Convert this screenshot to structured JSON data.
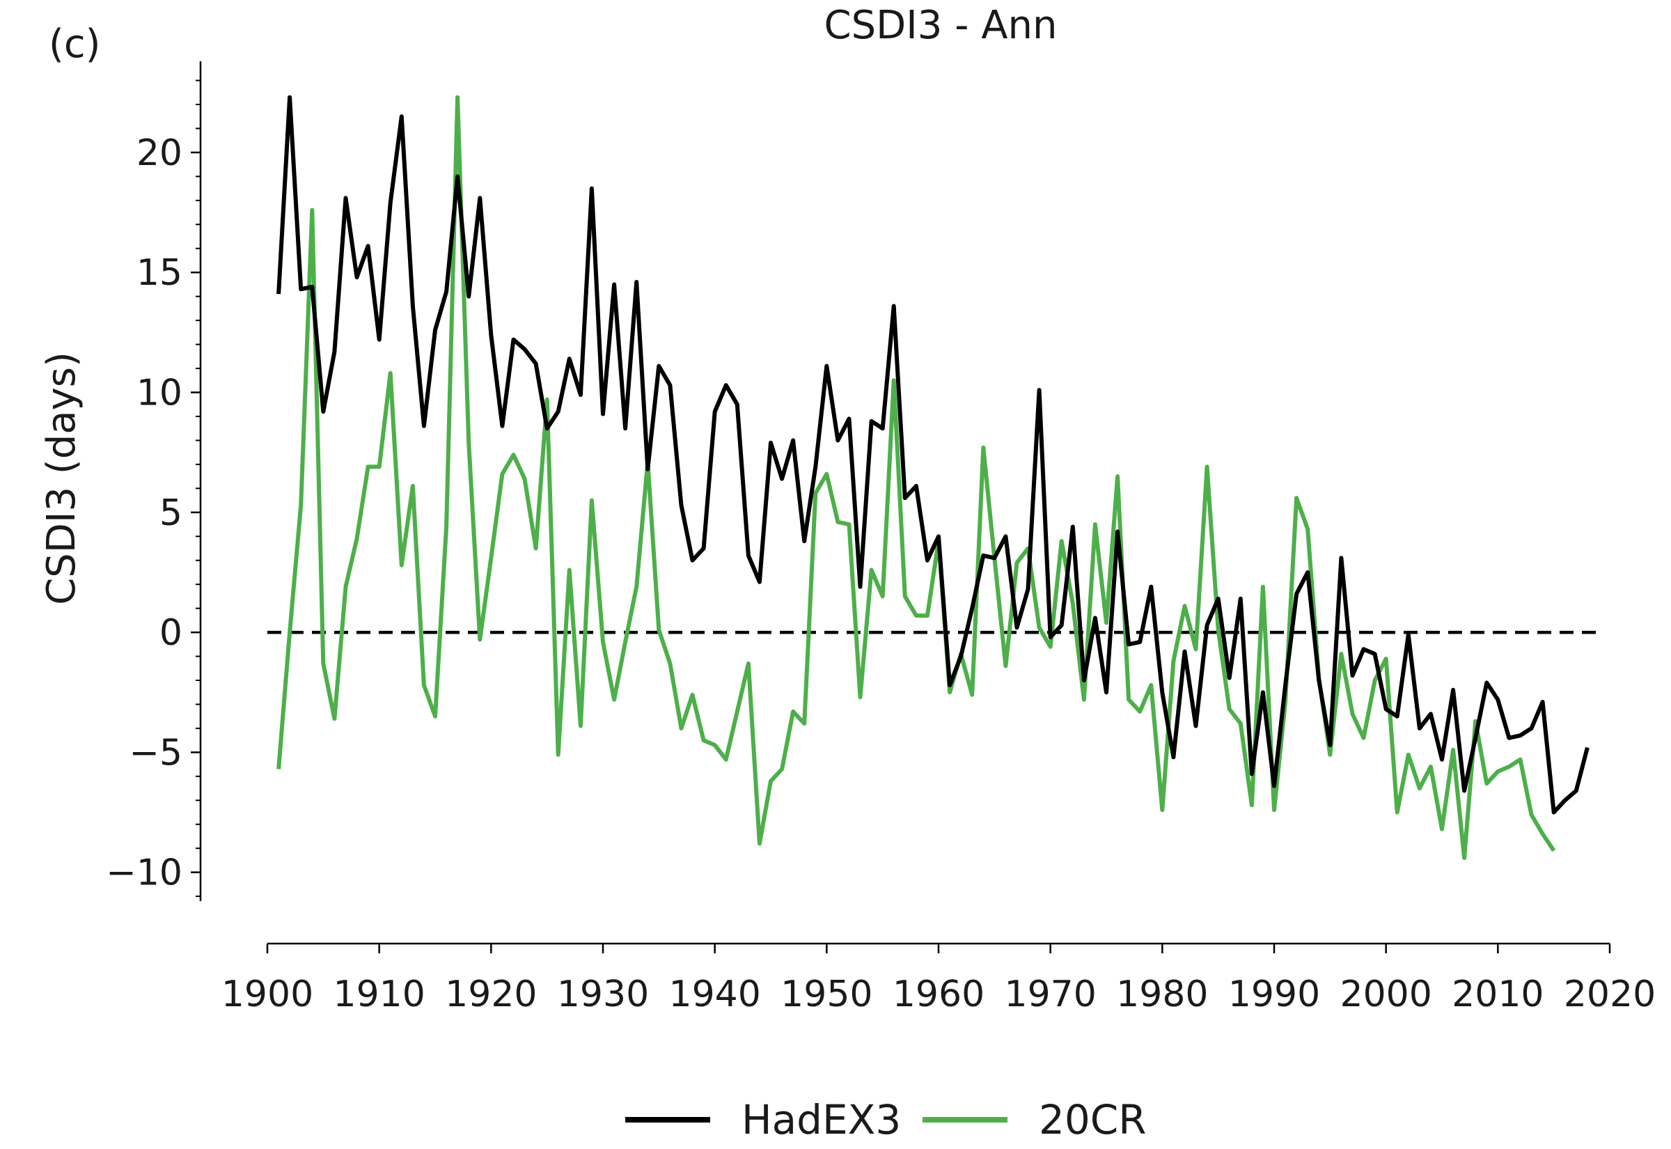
{
  "panel_label": "(c)",
  "colors": {
    "hadex3": "#000000",
    "cr20": "#4daf4a",
    "zero_line": "#000000",
    "axis": "#000000"
  },
  "chart_data": {
    "type": "line",
    "title": "CSDI3 - Ann",
    "xlabel": "",
    "ylabel": "CSDI3 (days)",
    "xlim": [
      1900,
      2020
    ],
    "ylim": [
      -11.2,
      23.8
    ],
    "xticks": [
      1900,
      1910,
      1920,
      1930,
      1940,
      1950,
      1960,
      1970,
      1980,
      1990,
      2000,
      2010,
      2020
    ],
    "yticks": [
      -10,
      -5,
      0,
      5,
      10,
      15,
      20
    ],
    "yminor_step": 1,
    "grid": false,
    "reference_line": {
      "y": 0,
      "style": "dashed"
    },
    "legend_position": "bottom-center",
    "series": [
      {
        "name": "HadEX3",
        "color": "#000000",
        "x": [
          1901,
          1902,
          1903,
          1904,
          1905,
          1906,
          1907,
          1908,
          1909,
          1910,
          1911,
          1912,
          1913,
          1914,
          1915,
          1916,
          1917,
          1918,
          1919,
          1920,
          1921,
          1922,
          1923,
          1924,
          1925,
          1926,
          1927,
          1928,
          1929,
          1930,
          1931,
          1932,
          1933,
          1934,
          1935,
          1936,
          1937,
          1938,
          1939,
          1940,
          1941,
          1942,
          1943,
          1944,
          1945,
          1946,
          1947,
          1948,
          1949,
          1950,
          1951,
          1952,
          1953,
          1954,
          1955,
          1956,
          1957,
          1958,
          1959,
          1960,
          1961,
          1962,
          1963,
          1964,
          1965,
          1966,
          1967,
          1968,
          1969,
          1970,
          1971,
          1972,
          1973,
          1974,
          1975,
          1976,
          1977,
          1978,
          1979,
          1980,
          1981,
          1982,
          1983,
          1984,
          1985,
          1986,
          1987,
          1988,
          1989,
          1990,
          1991,
          1992,
          1993,
          1994,
          1995,
          1996,
          1997,
          1998,
          1999,
          2000,
          2001,
          2002,
          2003,
          2004,
          2005,
          2006,
          2007,
          2008,
          2009,
          2010,
          2011,
          2012,
          2013,
          2014,
          2015,
          2016,
          2017,
          2018
        ],
        "y": [
          14.1,
          22.3,
          14.3,
          14.4,
          9.2,
          11.7,
          18.1,
          14.8,
          16.1,
          12.2,
          17.9,
          21.5,
          13.6,
          8.6,
          12.6,
          14.2,
          19.0,
          14.0,
          18.1,
          12.4,
          8.6,
          12.2,
          11.8,
          11.2,
          8.5,
          9.2,
          11.4,
          9.9,
          18.5,
          9.1,
          14.5,
          8.5,
          14.6,
          6.8,
          11.1,
          10.3,
          5.3,
          3.0,
          3.5,
          9.2,
          10.3,
          9.5,
          3.2,
          2.1,
          7.9,
          6.4,
          8.0,
          3.8,
          6.9,
          11.1,
          8.0,
          8.9,
          1.9,
          8.8,
          8.5,
          13.6,
          5.6,
          6.1,
          3.0,
          4.0,
          -2.2,
          -1.0,
          1.0,
          3.2,
          3.1,
          4.0,
          0.2,
          1.8,
          10.1,
          -0.2,
          0.3,
          4.4,
          -2.0,
          0.6,
          -2.5,
          4.2,
          -0.5,
          -0.4,
          1.9,
          -2.5,
          -5.2,
          -0.8,
          -3.9,
          0.3,
          1.4,
          -1.9,
          1.4,
          -5.9,
          -2.5,
          -6.4,
          -2.2,
          1.6,
          2.5,
          -2.0,
          -4.7,
          3.1,
          -1.8,
          -0.7,
          -0.9,
          -3.2,
          -3.5,
          -0.1,
          -4.0,
          -3.4,
          -5.3,
          -2.4,
          -6.6,
          -4.4,
          -2.1,
          -2.8,
          -4.4,
          -4.3,
          -4.0,
          -2.9,
          -7.5,
          -7.0,
          -6.6,
          -4.8
        ]
      },
      {
        "name": "20CR",
        "color": "#4daf4a",
        "x": [
          1901,
          1902,
          1903,
          1904,
          1905,
          1906,
          1907,
          1908,
          1909,
          1910,
          1911,
          1912,
          1913,
          1914,
          1915,
          1916,
          1917,
          1918,
          1919,
          1920,
          1921,
          1922,
          1923,
          1924,
          1925,
          1926,
          1927,
          1928,
          1929,
          1930,
          1931,
          1932,
          1933,
          1934,
          1935,
          1936,
          1937,
          1938,
          1939,
          1940,
          1941,
          1942,
          1943,
          1944,
          1945,
          1946,
          1947,
          1948,
          1949,
          1950,
          1951,
          1952,
          1953,
          1954,
          1955,
          1956,
          1957,
          1958,
          1959,
          1960,
          1961,
          1962,
          1963,
          1964,
          1965,
          1966,
          1967,
          1968,
          1969,
          1970,
          1971,
          1972,
          1973,
          1974,
          1975,
          1976,
          1977,
          1978,
          1979,
          1980,
          1981,
          1982,
          1983,
          1984,
          1985,
          1986,
          1987,
          1988,
          1989,
          1990,
          1991,
          1992,
          1993,
          1994,
          1995,
          1996,
          1997,
          1998,
          1999,
          2000,
          2001,
          2002,
          2003,
          2004,
          2005,
          2006,
          2007,
          2008,
          2009,
          2010,
          2011,
          2012,
          2013,
          2014,
          2015
        ],
        "y": [
          -5.7,
          0.0,
          5.3,
          17.6,
          -1.3,
          -3.6,
          1.9,
          3.9,
          6.9,
          6.9,
          10.8,
          2.8,
          6.1,
          -2.2,
          -3.5,
          4.4,
          22.3,
          7.9,
          -0.3,
          3.1,
          6.6,
          7.4,
          6.4,
          3.5,
          9.7,
          -5.1,
          2.6,
          -3.9,
          5.5,
          -0.4,
          -2.8,
          -0.4,
          1.9,
          7.1,
          0.1,
          -1.3,
          -4.0,
          -2.6,
          -4.5,
          -4.7,
          -5.3,
          -3.3,
          -1.3,
          -8.8,
          -6.2,
          -5.7,
          -3.3,
          -3.8,
          5.8,
          6.6,
          4.6,
          4.5,
          -2.7,
          2.6,
          1.5,
          10.5,
          1.5,
          0.7,
          0.7,
          3.8,
          -2.5,
          -0.9,
          -2.6,
          7.7,
          3.1,
          -1.4,
          2.9,
          3.5,
          0.2,
          -0.6,
          3.8,
          1.2,
          -2.8,
          4.5,
          0.4,
          6.5,
          -2.8,
          -3.3,
          -2.2,
          -7.4,
          -1.2,
          1.1,
          -0.7,
          6.9,
          0.1,
          -3.2,
          -3.8,
          -7.2,
          1.9,
          -7.4,
          -2.9,
          5.6,
          4.3,
          -1.9,
          -5.1,
          -0.9,
          -3.4,
          -4.4,
          -2.0,
          -1.1,
          -7.5,
          -5.1,
          -6.5,
          -5.6,
          -8.2,
          -4.9,
          -9.4,
          -3.7,
          -6.3,
          -5.8,
          -5.6,
          -5.3,
          -7.6,
          -8.4,
          -9.1
        ]
      }
    ]
  }
}
